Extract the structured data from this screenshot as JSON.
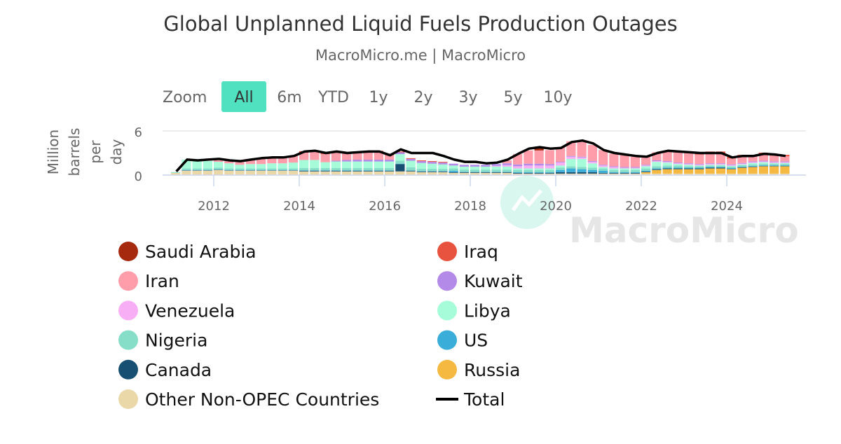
{
  "title": "Global Unplanned Liquid Fuels Production Outages",
  "subtitle": "MacroMicro.me | MacroMicro",
  "zoom": {
    "label": "Zoom",
    "buttons": [
      "All",
      "6m",
      "YTD",
      "1y",
      "2y",
      "3y",
      "5y",
      "10y"
    ],
    "active": "All",
    "active_color": "#4fe1c0"
  },
  "watermark": "MacroMicro",
  "chart_data": {
    "type": "bar",
    "stacked": true,
    "title": "Global Unplanned Liquid Fuels Production Outages",
    "ylabel_lines": [
      "Million",
      "barrels",
      "per",
      "day"
    ],
    "ylim": [
      0,
      6
    ],
    "yticks": [
      "0",
      "6"
    ],
    "xticks": [
      "2012",
      "2014",
      "2016",
      "2018",
      "2020",
      "2022",
      "2024"
    ],
    "x_start": "2011Q1",
    "x_frequency": "quarterly",
    "legend_position": "bottom",
    "series": [
      {
        "name": "Saudi Arabia",
        "color": "#a52a0e",
        "values": [
          0,
          0,
          0,
          0,
          0,
          0,
          0,
          0,
          0,
          0,
          0,
          0,
          0,
          0,
          0,
          0,
          0,
          0,
          0,
          0,
          0,
          0,
          0,
          0,
          0,
          0,
          0,
          0,
          0,
          0,
          0,
          0,
          0,
          0,
          0.5,
          0,
          0,
          0,
          0,
          0,
          0,
          0,
          0,
          0,
          0,
          0,
          0,
          0,
          0,
          0,
          0,
          0,
          0,
          0,
          0,
          0,
          0,
          0
        ]
      },
      {
        "name": "Iraq",
        "color": "#e8533f",
        "values": [
          0,
          0,
          0,
          0,
          0,
          0,
          0,
          0,
          0,
          0,
          0,
          0,
          0.2,
          0.2,
          0.2,
          0.2,
          0.1,
          0.1,
          0.1,
          0.1,
          0.1,
          0.1,
          0.1,
          0.1,
          0.1,
          0.1,
          0,
          0,
          0,
          0,
          0,
          0,
          0,
          0,
          0,
          0,
          0,
          0,
          0,
          0,
          0,
          0,
          0,
          0,
          0,
          0,
          0,
          0,
          0.2,
          0.3,
          0.3,
          0.3,
          0.2,
          0.2,
          0.2,
          0.2,
          0.2,
          0.2
        ]
      },
      {
        "name": "Iran",
        "color": "#ff9eaa",
        "values": [
          0,
          0,
          0,
          0,
          0.2,
          0.4,
          0.5,
          0.7,
          0.8,
          0.8,
          0.8,
          0.9,
          1.0,
          1.1,
          1.1,
          1.1,
          0.9,
          1.0,
          1.1,
          1.1,
          0.6,
          0,
          0,
          0,
          0,
          0,
          0,
          0,
          0,
          0,
          0,
          0.4,
          1.4,
          1.8,
          1.8,
          1.9,
          2.0,
          2.0,
          2.0,
          2.2,
          2.0,
          1.7,
          1.6,
          1.4,
          1.1,
          1.1,
          1.3,
          1.4,
          1.4,
          1.3,
          1.3,
          1.3,
          0.8,
          0.9,
          0.7,
          0.9,
          0.8,
          0.7
        ]
      },
      {
        "name": "Kuwait",
        "color": "#b48ae8",
        "values": [
          0,
          0,
          0,
          0,
          0,
          0,
          0,
          0,
          0,
          0,
          0,
          0,
          0,
          0,
          0,
          0.1,
          0.2,
          0.25,
          0.25,
          0.25,
          0.25,
          0.25,
          0.25,
          0.25,
          0.25,
          0.25,
          0.25,
          0.25,
          0.25,
          0.25,
          0.25,
          0.25,
          0.25,
          0.25,
          0.25,
          0.2,
          0.1,
          0.1,
          0.1,
          0.1,
          0.1,
          0.1,
          0.1,
          0.1,
          0.1,
          0.1,
          0.1,
          0.1,
          0.1,
          0.1,
          0.1,
          0.1,
          0.1,
          0.1,
          0.1,
          0.1,
          0.1,
          0.1
        ]
      },
      {
        "name": "Venezuela",
        "color": "#f7aef5",
        "values": [
          0,
          0,
          0,
          0,
          0,
          0,
          0,
          0,
          0,
          0,
          0,
          0,
          0,
          0,
          0,
          0,
          0,
          0,
          0,
          0,
          0,
          0,
          0,
          0,
          0,
          0,
          0,
          0,
          0,
          0,
          0.1,
          0.2,
          0.3,
          0.4,
          0.4,
          0.4,
          0.4,
          0.3,
          0.2,
          0.2,
          0.2,
          0.2,
          0.1,
          0.1,
          0.1,
          0.1,
          0.1,
          0.1,
          0.1,
          0.1,
          0.1,
          0.1,
          0.1,
          0.1,
          0.1,
          0.1,
          0.1,
          0.1
        ]
      },
      {
        "name": "Libya",
        "color": "#a6fcd9",
        "values": [
          0,
          1.2,
          1.1,
          1.0,
          0.8,
          0.7,
          0.5,
          0.6,
          0.6,
          0.7,
          0.7,
          0.8,
          1.1,
          1.1,
          0.8,
          0.9,
          0.9,
          0.9,
          0.9,
          0.9,
          0.9,
          0.9,
          0.9,
          0.8,
          0.7,
          0.6,
          0.4,
          0.4,
          0.4,
          0.4,
          0.4,
          0.4,
          0.2,
          0.2,
          0.2,
          0.2,
          0.3,
          1.0,
          1.1,
          0.6,
          0.2,
          0.2,
          0.2,
          0.2,
          0.3,
          0.6,
          0.4,
          0.2,
          0.2,
          0.1,
          0.1,
          0.1,
          0.1,
          0.1,
          0.2,
          0.2,
          0.1,
          0.1
        ]
      },
      {
        "name": "Nigeria",
        "color": "#86dec8",
        "values": [
          0.1,
          0.2,
          0.2,
          0.2,
          0.2,
          0.2,
          0.2,
          0.2,
          0.2,
          0.2,
          0.2,
          0.2,
          0.3,
          0.3,
          0.3,
          0.3,
          0.3,
          0.3,
          0.3,
          0.3,
          0.3,
          0.4,
          0.4,
          0.3,
          0.3,
          0.3,
          0.3,
          0.3,
          0.3,
          0.3,
          0.3,
          0.3,
          0.3,
          0.3,
          0.3,
          0.3,
          0.3,
          0.3,
          0.3,
          0.3,
          0.3,
          0.3,
          0.3,
          0.3,
          0.3,
          0.3,
          0.3,
          0.3,
          0.2,
          0.2,
          0.2,
          0.2,
          0.2,
          0.2,
          0.2,
          0.2,
          0.2,
          0.2
        ]
      },
      {
        "name": "US",
        "color": "#3aaed8",
        "values": [
          0,
          0.05,
          0.05,
          0.05,
          0.05,
          0.05,
          0.05,
          0.05,
          0.05,
          0.05,
          0.05,
          0.05,
          0.05,
          0.05,
          0.05,
          0.05,
          0.05,
          0.05,
          0.05,
          0.05,
          0.05,
          0.05,
          0.05,
          0.05,
          0.05,
          0.05,
          0.2,
          0.05,
          0.05,
          0.05,
          0.05,
          0.05,
          0.1,
          0.1,
          0.1,
          0.1,
          0.3,
          0.5,
          0.4,
          0.3,
          0.3,
          0.1,
          0.1,
          0.1,
          0.1,
          0.1,
          0.1,
          0.1,
          0.1,
          0.1,
          0.1,
          0.1,
          0.1,
          0.1,
          0.1,
          0.1,
          0.1,
          0.1
        ]
      },
      {
        "name": "Canada",
        "color": "#174f73",
        "values": [
          0,
          0.05,
          0.05,
          0.05,
          0.05,
          0.05,
          0.05,
          0.05,
          0.05,
          0.05,
          0.05,
          0.05,
          0.1,
          0.1,
          0.1,
          0.1,
          0.1,
          0.1,
          0.1,
          0.1,
          0.1,
          1.0,
          0.1,
          0.1,
          0.1,
          0.1,
          0.1,
          0.1,
          0.1,
          0.1,
          0.1,
          0.1,
          0.1,
          0.1,
          0.1,
          0.1,
          0.2,
          0.2,
          0.2,
          0.2,
          0.1,
          0.1,
          0.1,
          0.1,
          0.1,
          0.1,
          0.1,
          0.1,
          0.1,
          0.1,
          0.1,
          0.1,
          0.05,
          0.05,
          0.05,
          0.05,
          0.05,
          0.05
        ]
      },
      {
        "name": "Russia",
        "color": "#f5b942",
        "values": [
          0,
          0,
          0,
          0,
          0,
          0,
          0,
          0,
          0,
          0,
          0,
          0,
          0,
          0,
          0,
          0,
          0,
          0,
          0,
          0,
          0,
          0,
          0,
          0,
          0,
          0,
          0,
          0,
          0,
          0,
          0,
          0,
          0,
          0,
          0,
          0,
          0,
          0,
          0,
          0,
          0,
          0,
          0,
          0,
          0.2,
          0.5,
          0.6,
          0.6,
          0.6,
          0.6,
          0.7,
          0.7,
          0.6,
          0.8,
          0.9,
          1.0,
          1.0,
          1.0
        ]
      },
      {
        "name": "Other Non-OPEC Countries",
        "color": "#ead8a8",
        "values": [
          0.3,
          0.6,
          0.6,
          0.6,
          0.7,
          0.6,
          0.6,
          0.6,
          0.6,
          0.6,
          0.6,
          0.6,
          0.5,
          0.5,
          0.5,
          0.5,
          0.5,
          0.5,
          0.5,
          0.5,
          0.5,
          0.5,
          0.5,
          0.4,
          0.4,
          0.4,
          0.3,
          0.3,
          0.3,
          0.3,
          0.3,
          0.3,
          0.2,
          0.2,
          0.2,
          0.2,
          0.2,
          0.2,
          0.2,
          0.2,
          0.2,
          0.2,
          0.2,
          0.2,
          0.2,
          0.2,
          0.2,
          0.2,
          0.2,
          0.2,
          0.2,
          0.2,
          0.2,
          0.2,
          0.2,
          0.2,
          0.2,
          0.2
        ]
      }
    ],
    "total": {
      "name": "Total",
      "color": "#000000",
      "values": [
        0.5,
        2.1,
        2.0,
        2.1,
        2.2,
        2.0,
        1.9,
        2.1,
        2.3,
        2.4,
        2.4,
        2.6,
        3.2,
        3.3,
        3.0,
        3.2,
        3.0,
        3.1,
        3.2,
        3.2,
        2.7,
        3.5,
        3.0,
        3.0,
        3.0,
        2.6,
        2.1,
        1.8,
        1.8,
        1.6,
        1.7,
        2.1,
        2.9,
        3.6,
        3.8,
        3.6,
        3.7,
        4.5,
        4.7,
        4.3,
        3.4,
        3.0,
        2.8,
        2.6,
        2.5,
        3.0,
        3.3,
        3.2,
        3.1,
        3.0,
        3.0,
        3.0,
        2.4,
        2.6,
        2.6,
        2.9,
        2.8,
        2.6
      ]
    }
  }
}
